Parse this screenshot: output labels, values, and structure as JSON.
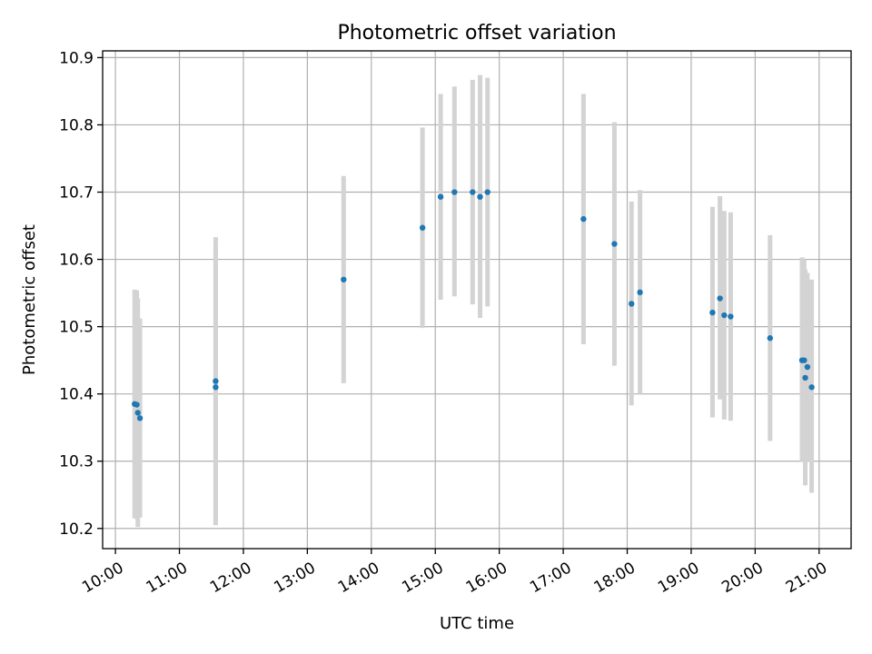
{
  "chart_data": {
    "type": "scatter",
    "title": "Photometric offset variation",
    "xlabel": "UTC time",
    "ylabel": "Photometric offset",
    "grid": true,
    "colors": {
      "point": "#1f77b4",
      "errorbar": "#d3d3d3"
    },
    "xlim": [
      "09:48",
      "21:30"
    ],
    "ylim": [
      10.17,
      10.91
    ],
    "x_ticks": [
      "10:00",
      "11:00",
      "12:00",
      "13:00",
      "14:00",
      "15:00",
      "16:00",
      "17:00",
      "18:00",
      "19:00",
      "20:00",
      "21:00"
    ],
    "y_ticks": [
      "10.2",
      "10.3",
      "10.4",
      "10.5",
      "10.6",
      "10.7",
      "10.8",
      "10.9"
    ],
    "series": [
      {
        "points": [
          {
            "x": "10:18",
            "y": 10.385,
            "err_low": 10.215,
            "err_high": 10.555
          },
          {
            "x": "10:20",
            "y": 10.384,
            "err_low": 10.214,
            "err_high": 10.554
          },
          {
            "x": "10:21",
            "y": 10.372,
            "err_low": 10.202,
            "err_high": 10.542
          },
          {
            "x": "10:23",
            "y": 10.364,
            "err_low": 10.216,
            "err_high": 10.512
          },
          {
            "x": "11:34",
            "y": 10.419,
            "err_low": 10.205,
            "err_high": 10.633
          },
          {
            "x": "11:34",
            "y": 10.41,
            "err_low": 10.205,
            "err_high": 10.615
          },
          {
            "x": "13:34",
            "y": 10.57,
            "err_low": 10.416,
            "err_high": 10.724
          },
          {
            "x": "14:48",
            "y": 10.647,
            "err_low": 10.498,
            "err_high": 10.796
          },
          {
            "x": "15:05",
            "y": 10.693,
            "err_low": 10.54,
            "err_high": 10.846
          },
          {
            "x": "15:18",
            "y": 10.7,
            "err_low": 10.545,
            "err_high": 10.857
          },
          {
            "x": "15:35",
            "y": 10.7,
            "err_low": 10.533,
            "err_high": 10.867
          },
          {
            "x": "15:42",
            "y": 10.693,
            "err_low": 10.513,
            "err_high": 10.874
          },
          {
            "x": "15:49",
            "y": 10.7,
            "err_low": 10.53,
            "err_high": 10.87
          },
          {
            "x": "17:19",
            "y": 10.66,
            "err_low": 10.474,
            "err_high": 10.846
          },
          {
            "x": "17:48",
            "y": 10.623,
            "err_low": 10.442,
            "err_high": 10.804
          },
          {
            "x": "18:04",
            "y": 10.534,
            "err_low": 10.383,
            "err_high": 10.686
          },
          {
            "x": "18:12",
            "y": 10.551,
            "err_low": 10.4,
            "err_high": 10.703
          },
          {
            "x": "19:20",
            "y": 10.521,
            "err_low": 10.365,
            "err_high": 10.678
          },
          {
            "x": "19:27",
            "y": 10.542,
            "err_low": 10.392,
            "err_high": 10.694
          },
          {
            "x": "19:31",
            "y": 10.517,
            "err_low": 10.362,
            "err_high": 10.672
          },
          {
            "x": "19:37",
            "y": 10.515,
            "err_low": 10.36,
            "err_high": 10.67
          },
          {
            "x": "20:14",
            "y": 10.483,
            "err_low": 10.33,
            "err_high": 10.636
          },
          {
            "x": "20:44",
            "y": 10.45,
            "err_low": 10.3,
            "err_high": 10.603
          },
          {
            "x": "20:46",
            "y": 10.45,
            "err_low": 10.3,
            "err_high": 10.6
          },
          {
            "x": "20:47",
            "y": 10.424,
            "err_low": 10.264,
            "err_high": 10.585
          },
          {
            "x": "20:49",
            "y": 10.44,
            "err_low": 10.3,
            "err_high": 10.58
          },
          {
            "x": "20:53",
            "y": 10.41,
            "err_low": 10.253,
            "err_high": 10.57
          }
        ]
      }
    ]
  }
}
